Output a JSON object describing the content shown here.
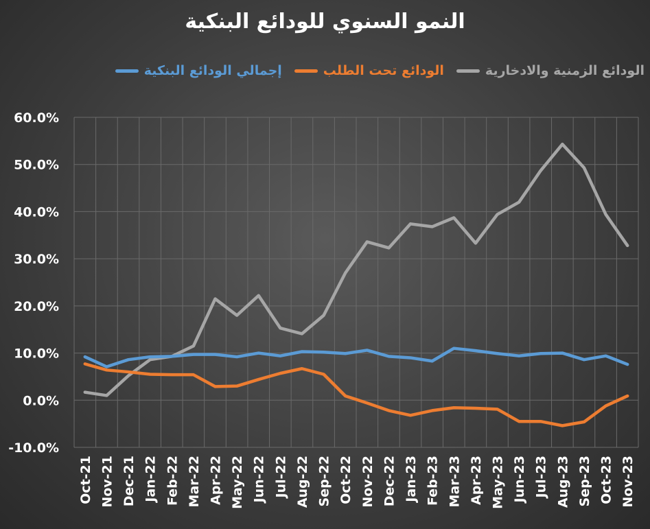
{
  "chart_data": {
    "type": "line",
    "title": "النمو السنوي للودائع البنكية",
    "categories": [
      "Oct-21",
      "Nov-21",
      "Dec-21",
      "Jan-22",
      "Feb-22",
      "Mar-22",
      "Apr-22",
      "May-22",
      "Jun-22",
      "Jul-22",
      "Aug-22",
      "Sep-22",
      "Oct-22",
      "Nov-22",
      "Dec-22",
      "Jan-23",
      "Feb-23",
      "Mar-23",
      "Apr-23",
      "May-23",
      "Jun-23",
      "Jul-23",
      "Aug-23",
      "Sep-23",
      "Oct-23",
      "Nov-23"
    ],
    "series": [
      {
        "name": "الودائع الزمنية والادخارية",
        "color": "#a6a6a6",
        "values": [
          1.7,
          1.0,
          5.2,
          8.6,
          9.3,
          11.5,
          21.5,
          18,
          22.2,
          15.3,
          14.1,
          18,
          27,
          33.6,
          32.3,
          37.4,
          36.8,
          38.7,
          33.3,
          39.4,
          42,
          48.7,
          54.3,
          49.3,
          39.4,
          32.8
        ]
      },
      {
        "name": "الودائع تحت الطلب",
        "color": "#ed7d31",
        "values": [
          7.7,
          6.4,
          6,
          5.5,
          5.4,
          5.4,
          2.9,
          3.0,
          4.4,
          5.7,
          6.7,
          5.5,
          0.9,
          -0.6,
          -2.2,
          -3.2,
          -2.2,
          -1.6,
          -1.7,
          -1.9,
          -4.5,
          -4.5,
          -5.4,
          -4.6,
          -1.2,
          0.9
        ]
      },
      {
        "name": "إجمالي الودائع البنكية",
        "color": "#5b9bd5",
        "values": [
          9.2,
          7.1,
          8.6,
          9.2,
          9.3,
          9.7,
          9.7,
          9.2,
          10,
          9.4,
          10.3,
          10.2,
          9.9,
          10.6,
          9.3,
          9,
          8.3,
          11,
          10.5,
          9.9,
          9.4,
          9.9,
          10,
          8.6,
          9.4,
          7.6
        ]
      }
    ],
    "ylim": [
      -10,
      60
    ],
    "yticks": [
      {
        "value": -10,
        "label": "-10.0%"
      },
      {
        "value": 0,
        "label": "0.0%"
      },
      {
        "value": 10,
        "label": "10.0%"
      },
      {
        "value": 20,
        "label": "20.0%"
      },
      {
        "value": 30,
        "label": "30.0%"
      },
      {
        "value": 40,
        "label": "40.0%"
      },
      {
        "value": 50,
        "label": "50.0%"
      },
      {
        "value": 60,
        "label": "60.0%"
      }
    ],
    "grid": true
  }
}
